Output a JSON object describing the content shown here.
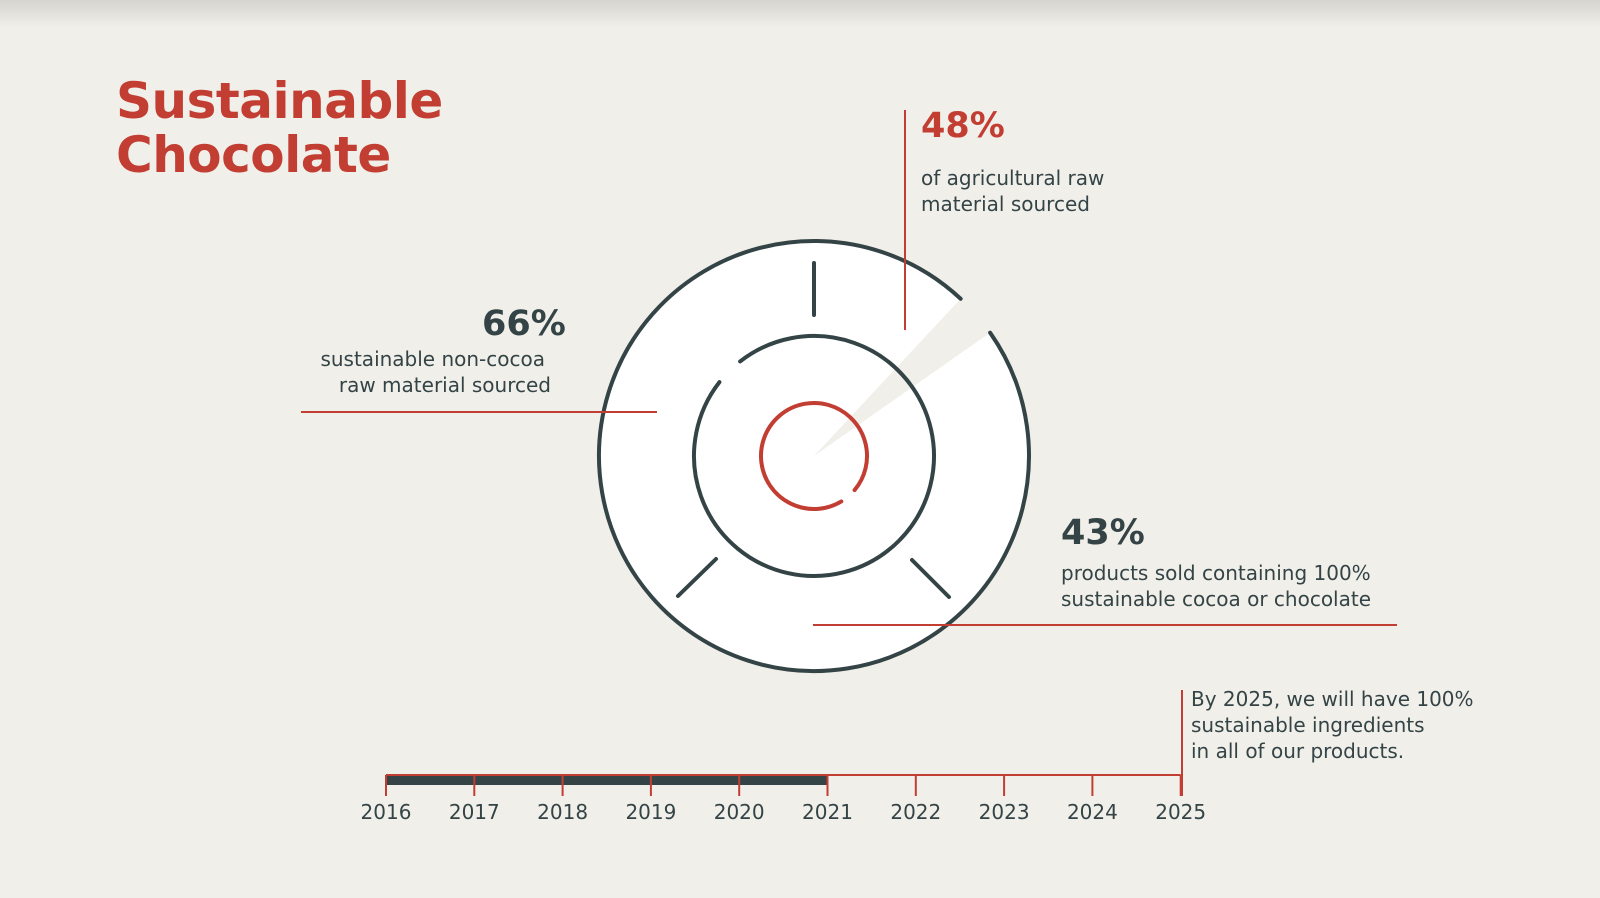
{
  "title": {
    "line1": "Sustainable",
    "line2": "Chocolate"
  },
  "colors": {
    "accent": "#c23d32",
    "dark": "#344446",
    "background": "#f1efea",
    "ring_fill": "#ffffff"
  },
  "chart_data": {
    "type": "radial-infographic",
    "stats": [
      {
        "value": 48,
        "label": "48%",
        "desc1": "of agricultural raw",
        "desc2": "material sourced"
      },
      {
        "value": 66,
        "label": "66%",
        "desc1": "sustainable non-cocoa",
        "desc2": "raw material sourced"
      },
      {
        "value": 43,
        "label": "43%",
        "desc1": "products sold containing 100%",
        "desc2": "sustainable cocoa or chocolate"
      }
    ],
    "timeline": {
      "years": [
        "2016",
        "2017",
        "2018",
        "2019",
        "2020",
        "2021",
        "2022",
        "2023",
        "2024",
        "2025"
      ],
      "progress_through": "2021",
      "goal": [
        "By 2025, we will have 100%",
        "sustainable ingredients",
        "in all of our products."
      ]
    }
  }
}
